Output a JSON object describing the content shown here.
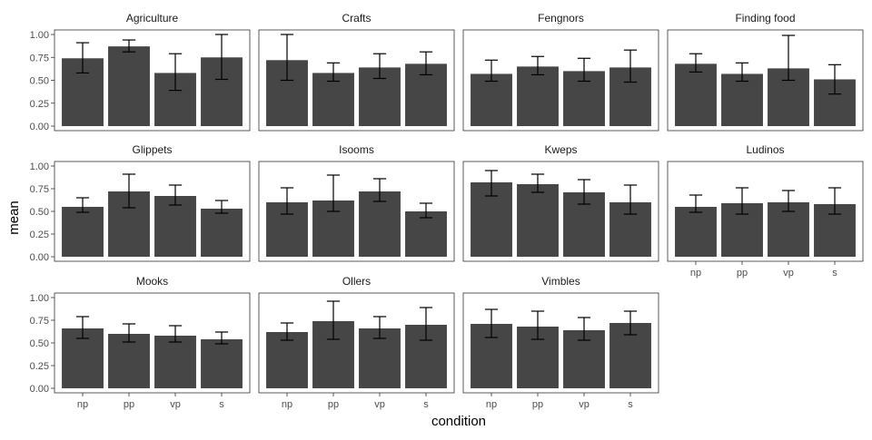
{
  "chart_data": {
    "type": "bar",
    "xlabel": "condition",
    "ylabel": "mean",
    "categories": [
      "np",
      "pp",
      "vp",
      "s"
    ],
    "ylim": [
      0,
      1
    ],
    "yticks": [
      "0.00",
      "0.25",
      "0.50",
      "0.75",
      "1.00"
    ],
    "y_tick_values": [
      0,
      0.25,
      0.5,
      0.75,
      1
    ],
    "bar_color": "#464646",
    "error_bar_color": "#000000",
    "panel_border_color": "#333333",
    "grid": false,
    "panels": [
      {
        "title": "Agriculture",
        "values": [
          0.74,
          0.87,
          0.58,
          0.75
        ],
        "lower": [
          0.58,
          0.81,
          0.39,
          0.51
        ],
        "upper": [
          0.91,
          0.94,
          0.79,
          1.0
        ]
      },
      {
        "title": "Crafts",
        "values": [
          0.72,
          0.58,
          0.64,
          0.68
        ],
        "lower": [
          0.5,
          0.49,
          0.52,
          0.56
        ],
        "upper": [
          1.0,
          0.69,
          0.79,
          0.81
        ]
      },
      {
        "title": "Fengnors",
        "values": [
          0.57,
          0.65,
          0.6,
          0.64
        ],
        "lower": [
          0.49,
          0.56,
          0.49,
          0.48
        ],
        "upper": [
          0.72,
          0.76,
          0.74,
          0.83
        ]
      },
      {
        "title": "Finding food",
        "values": [
          0.68,
          0.57,
          0.63,
          0.51
        ],
        "lower": [
          0.59,
          0.49,
          0.5,
          0.35
        ],
        "upper": [
          0.79,
          0.69,
          0.99,
          0.67
        ]
      },
      {
        "title": "Glippets",
        "values": [
          0.55,
          0.72,
          0.67,
          0.53
        ],
        "lower": [
          0.49,
          0.54,
          0.57,
          0.48
        ],
        "upper": [
          0.65,
          0.91,
          0.79,
          0.62
        ]
      },
      {
        "title": "Isooms",
        "values": [
          0.6,
          0.62,
          0.72,
          0.5
        ],
        "lower": [
          0.47,
          0.5,
          0.61,
          0.43
        ],
        "upper": [
          0.76,
          0.9,
          0.86,
          0.59
        ]
      },
      {
        "title": "Kweps",
        "values": [
          0.82,
          0.8,
          0.71,
          0.6
        ],
        "lower": [
          0.67,
          0.71,
          0.58,
          0.47
        ],
        "upper": [
          0.95,
          0.91,
          0.85,
          0.79
        ]
      },
      {
        "title": "Ludinos",
        "values": [
          0.55,
          0.59,
          0.6,
          0.58
        ],
        "lower": [
          0.49,
          0.47,
          0.5,
          0.47
        ],
        "upper": [
          0.68,
          0.76,
          0.73,
          0.76
        ]
      },
      {
        "title": "Mooks",
        "values": [
          0.66,
          0.6,
          0.58,
          0.54
        ],
        "lower": [
          0.55,
          0.51,
          0.51,
          0.49
        ],
        "upper": [
          0.79,
          0.71,
          0.69,
          0.62
        ]
      },
      {
        "title": "Ollers",
        "values": [
          0.62,
          0.74,
          0.66,
          0.7
        ],
        "lower": [
          0.53,
          0.54,
          0.55,
          0.53
        ],
        "upper": [
          0.72,
          0.96,
          0.79,
          0.89
        ]
      },
      {
        "title": "Vimbles",
        "values": [
          0.71,
          0.68,
          0.64,
          0.72
        ],
        "lower": [
          0.56,
          0.54,
          0.53,
          0.59
        ],
        "upper": [
          0.87,
          0.85,
          0.78,
          0.85
        ]
      }
    ]
  }
}
